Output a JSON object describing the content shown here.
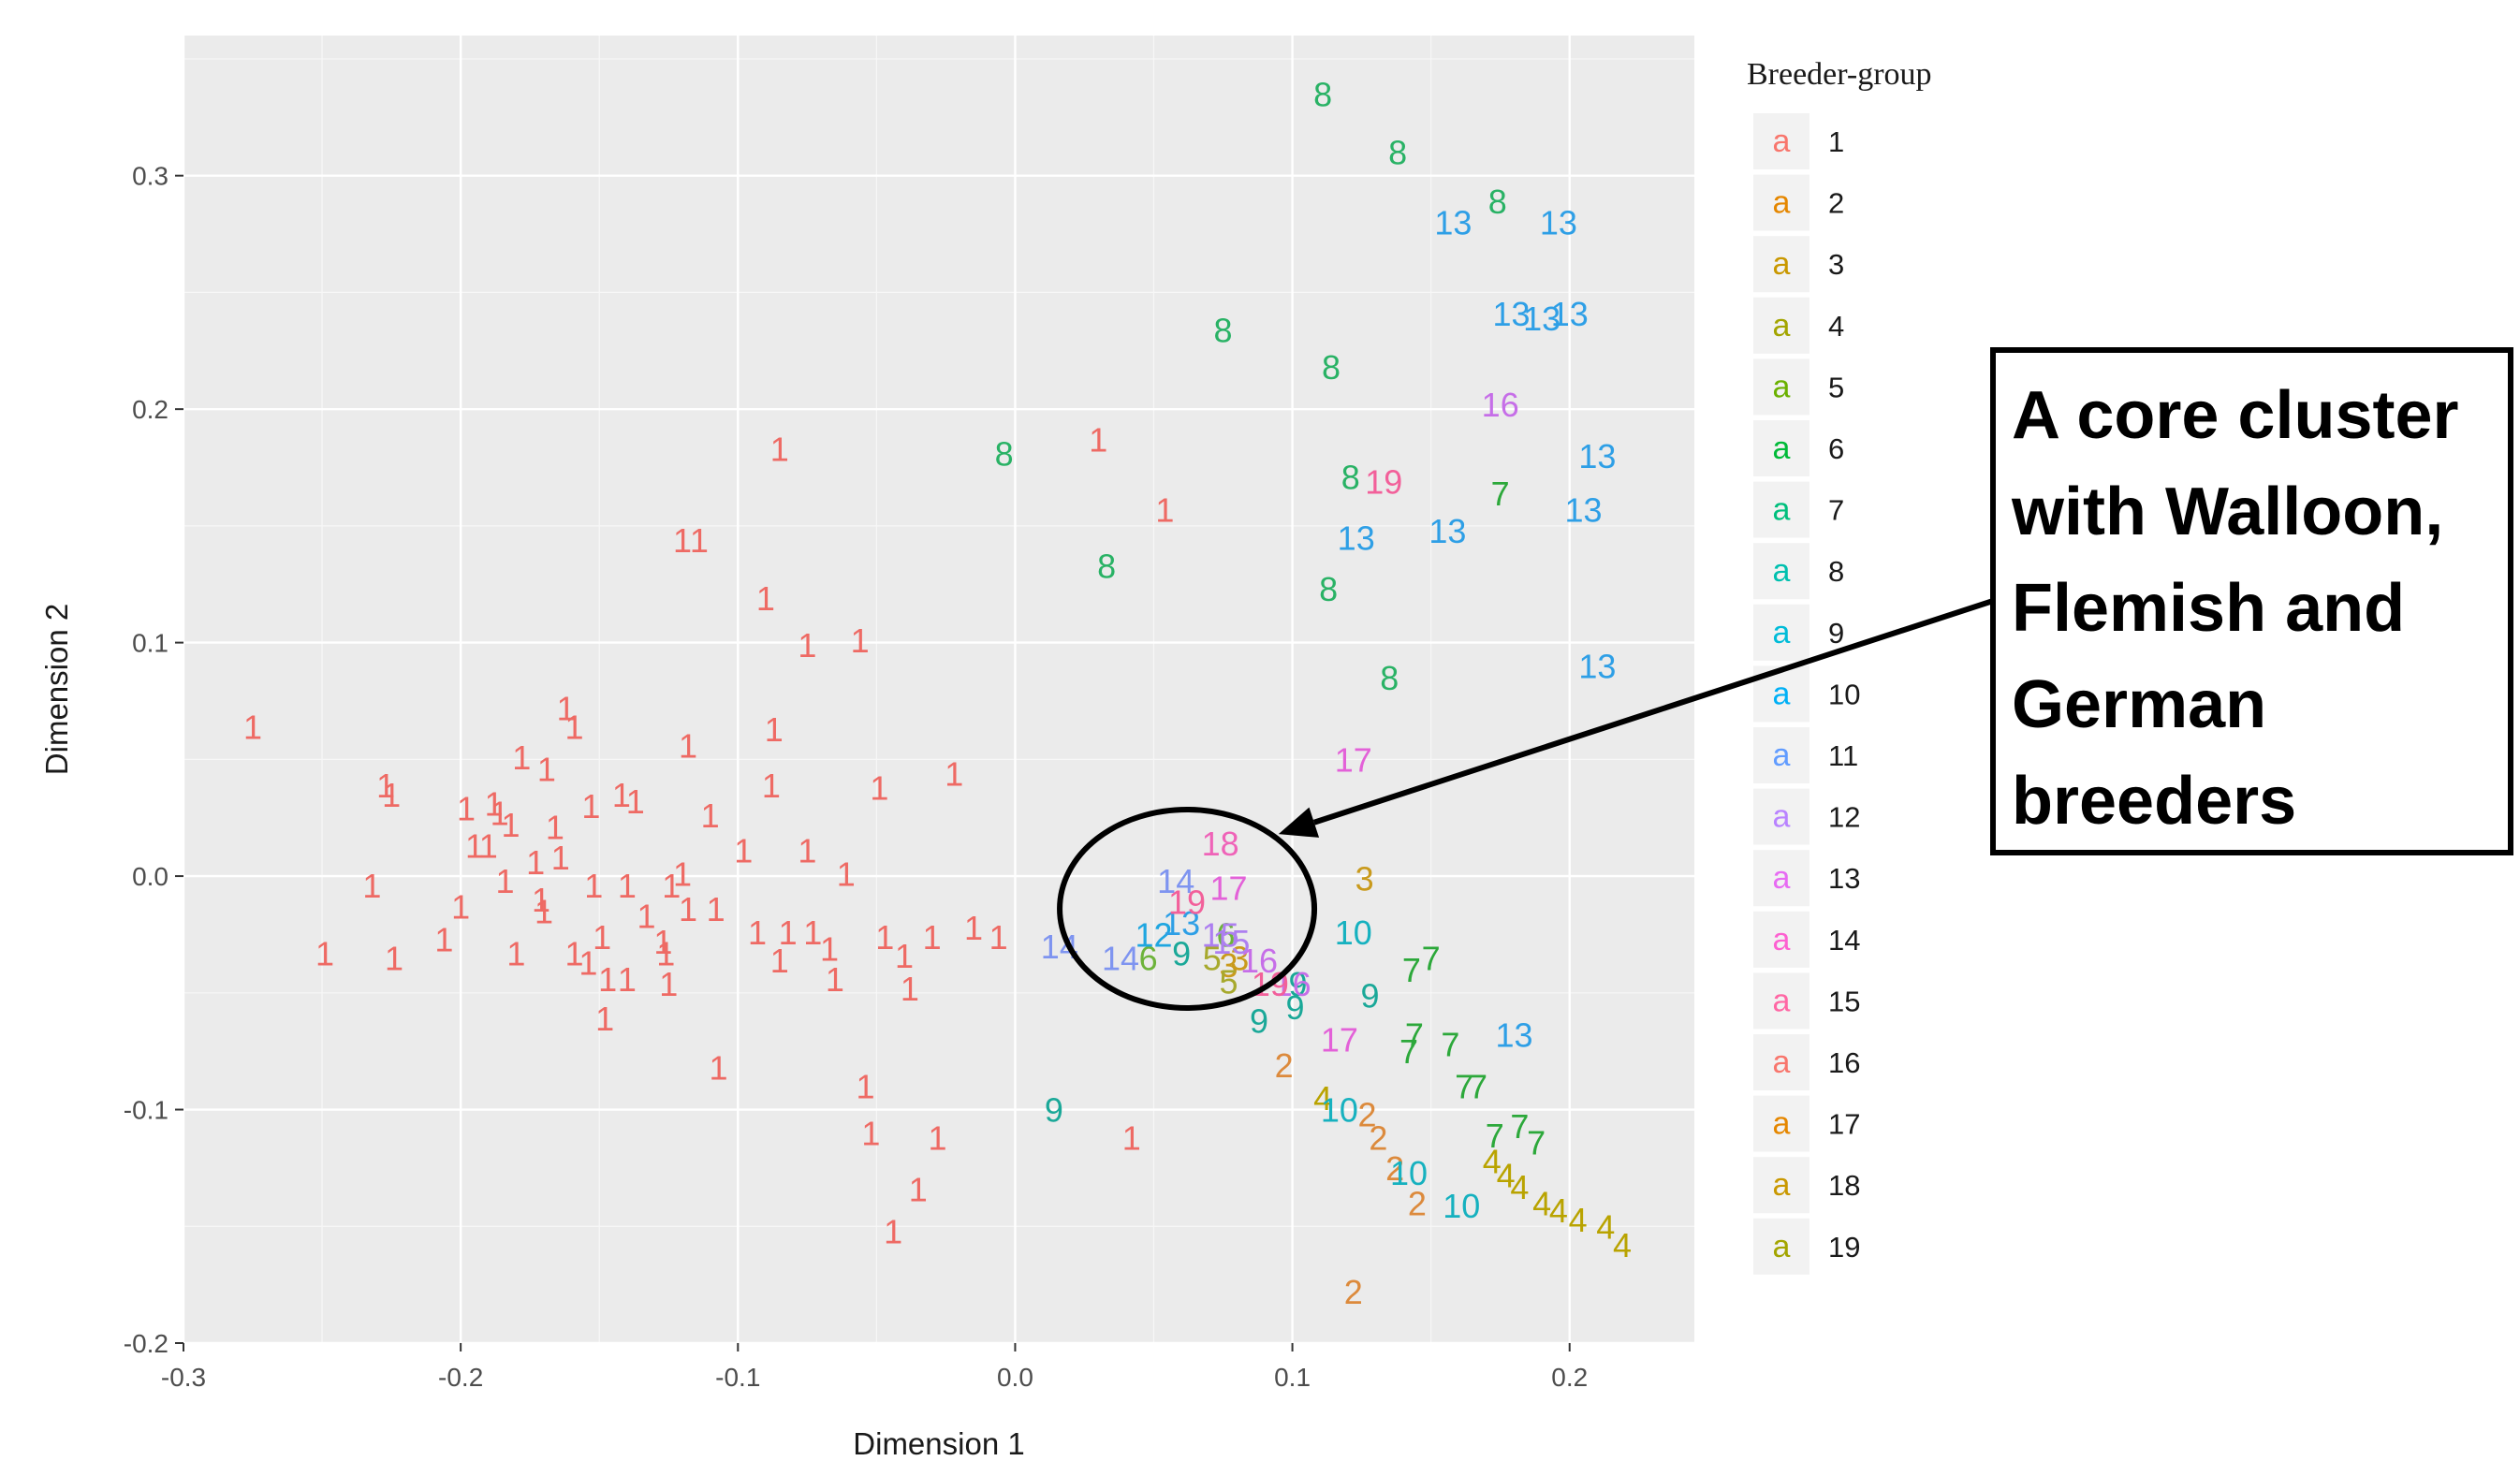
{
  "chart_data": {
    "type": "scatter",
    "marker": "text",
    "title": "",
    "xlabel": "Dimension 1",
    "ylabel": "Dimension 2",
    "xlim": [
      -0.3,
      0.245
    ],
    "ylim": [
      -0.2,
      0.36
    ],
    "xticks": [
      -0.3,
      -0.2,
      -0.1,
      0.0,
      0.1,
      0.2
    ],
    "xtick_labels": [
      "-0.3",
      "-0.2",
      "-0.1",
      "0.0",
      "0.1",
      "0.2"
    ],
    "yticks": [
      -0.2,
      -0.1,
      0.0,
      0.1,
      0.2,
      0.3
    ],
    "ytick_labels": [
      "-0.2",
      "-0.1",
      "0.0",
      "0.1",
      "0.2",
      "0.3"
    ],
    "grid": true,
    "background": "#ebebeb",
    "legend": {
      "title": "Breeder-group",
      "placement": "right",
      "key_glyph": "a",
      "entries": [
        {
          "label": "1",
          "color": "#f8766d"
        },
        {
          "label": "2",
          "color": "#e58700"
        },
        {
          "label": "3",
          "color": "#c99800"
        },
        {
          "label": "4",
          "color": "#a3a500"
        },
        {
          "label": "5",
          "color": "#6bb100"
        },
        {
          "label": "6",
          "color": "#00ba38"
        },
        {
          "label": "7",
          "color": "#00bf7d"
        },
        {
          "label": "8",
          "color": "#00c0af"
        },
        {
          "label": "9",
          "color": "#00bcd8"
        },
        {
          "label": "10",
          "color": "#00b0f6"
        },
        {
          "label": "11",
          "color": "#619cff"
        },
        {
          "label": "12",
          "color": "#b983ff"
        },
        {
          "label": "13",
          "color": "#e76bf3"
        },
        {
          "label": "14",
          "color": "#fd61d1"
        },
        {
          "label": "15",
          "color": "#ff67a4"
        },
        {
          "label": "16",
          "color": "#f8766d"
        },
        {
          "label": "17",
          "color": "#e58700"
        },
        {
          "label": "18",
          "color": "#c99800"
        },
        {
          "label": "19",
          "color": "#a3a500"
        }
      ]
    },
    "point_colors": {
      "1": "#ee6a64",
      "2": "#dc8a3c",
      "3": "#c99a1c",
      "4": "#b9a300",
      "5": "#a7a92d",
      "6": "#6db33a",
      "7": "#2ca83a",
      "8": "#29b265",
      "9": "#1aa898",
      "10": "#16b1bf",
      "12": "#1fa6e0",
      "13": "#2e9fe6",
      "14": "#7e94f0",
      "15": "#ad7ff0",
      "16": "#c66ee8",
      "17": "#e361d8",
      "18": "#ef63b8",
      "19": "#f2609a"
    },
    "points": [
      {
        "x": -0.275,
        "y": 0.064,
        "g": "1"
      },
      {
        "x": -0.249,
        "y": -0.033,
        "g": "1"
      },
      {
        "x": -0.232,
        "y": -0.004,
        "g": "1"
      },
      {
        "x": -0.227,
        "y": 0.039,
        "g": "1"
      },
      {
        "x": -0.225,
        "y": 0.035,
        "g": "1"
      },
      {
        "x": -0.224,
        "y": -0.035,
        "g": "1"
      },
      {
        "x": -0.206,
        "y": -0.027,
        "g": "1"
      },
      {
        "x": -0.2,
        "y": -0.013,
        "g": "1"
      },
      {
        "x": -0.198,
        "y": 0.029,
        "g": "1"
      },
      {
        "x": -0.195,
        "y": 0.013,
        "g": "1"
      },
      {
        "x": -0.19,
        "y": 0.013,
        "g": "1"
      },
      {
        "x": -0.188,
        "y": 0.031,
        "g": "1"
      },
      {
        "x": -0.186,
        "y": 0.027,
        "g": "1"
      },
      {
        "x": -0.184,
        "y": -0.002,
        "g": "1"
      },
      {
        "x": -0.182,
        "y": 0.022,
        "g": "1"
      },
      {
        "x": -0.18,
        "y": -0.033,
        "g": "1"
      },
      {
        "x": -0.178,
        "y": 0.051,
        "g": "1"
      },
      {
        "x": -0.173,
        "y": 0.006,
        "g": "1"
      },
      {
        "x": -0.171,
        "y": -0.01,
        "g": "1"
      },
      {
        "x": -0.17,
        "y": -0.015,
        "g": "1"
      },
      {
        "x": -0.169,
        "y": 0.046,
        "g": "1"
      },
      {
        "x": -0.166,
        "y": 0.021,
        "g": "1"
      },
      {
        "x": -0.164,
        "y": 0.008,
        "g": "1"
      },
      {
        "x": -0.162,
        "y": 0.072,
        "g": "1"
      },
      {
        "x": -0.159,
        "y": 0.064,
        "g": "1"
      },
      {
        "x": -0.159,
        "y": -0.033,
        "g": "1"
      },
      {
        "x": -0.154,
        "y": -0.037,
        "g": "1"
      },
      {
        "x": -0.153,
        "y": 0.03,
        "g": "1"
      },
      {
        "x": -0.152,
        "y": -0.004,
        "g": "1"
      },
      {
        "x": -0.149,
        "y": -0.026,
        "g": "1"
      },
      {
        "x": -0.148,
        "y": -0.061,
        "g": "1"
      },
      {
        "x": -0.147,
        "y": -0.044,
        "g": "1"
      },
      {
        "x": -0.142,
        "y": 0.035,
        "g": "1"
      },
      {
        "x": -0.14,
        "y": -0.004,
        "g": "1"
      },
      {
        "x": -0.137,
        "y": 0.032,
        "g": "1"
      },
      {
        "x": -0.14,
        "y": -0.044,
        "g": "1"
      },
      {
        "x": -0.133,
        "y": -0.017,
        "g": "1"
      },
      {
        "x": -0.127,
        "y": -0.028,
        "g": "1"
      },
      {
        "x": -0.126,
        "y": -0.033,
        "g": "1"
      },
      {
        "x": -0.125,
        "y": -0.046,
        "g": "1"
      },
      {
        "x": -0.124,
        "y": -0.004,
        "g": "1"
      },
      {
        "x": -0.12,
        "y": 0.144,
        "g": "1"
      },
      {
        "x": -0.12,
        "y": 0.001,
        "g": "1"
      },
      {
        "x": -0.118,
        "y": 0.056,
        "g": "1"
      },
      {
        "x": -0.118,
        "y": -0.014,
        "g": "1"
      },
      {
        "x": -0.114,
        "y": 0.144,
        "g": "1"
      },
      {
        "x": -0.11,
        "y": 0.026,
        "g": "1"
      },
      {
        "x": -0.108,
        "y": -0.014,
        "g": "1"
      },
      {
        "x": -0.107,
        "y": -0.082,
        "g": "1"
      },
      {
        "x": -0.098,
        "y": 0.011,
        "g": "1"
      },
      {
        "x": -0.093,
        "y": -0.024,
        "g": "1"
      },
      {
        "x": -0.09,
        "y": 0.119,
        "g": "1"
      },
      {
        "x": -0.088,
        "y": 0.039,
        "g": "1"
      },
      {
        "x": -0.087,
        "y": 0.063,
        "g": "1"
      },
      {
        "x": -0.085,
        "y": 0.183,
        "g": "1"
      },
      {
        "x": -0.085,
        "y": -0.036,
        "g": "1"
      },
      {
        "x": -0.082,
        "y": -0.024,
        "g": "1"
      },
      {
        "x": -0.075,
        "y": 0.099,
        "g": "1"
      },
      {
        "x": -0.075,
        "y": 0.011,
        "g": "1"
      },
      {
        "x": -0.073,
        "y": -0.024,
        "g": "1"
      },
      {
        "x": -0.067,
        "y": -0.031,
        "g": "1"
      },
      {
        "x": -0.065,
        "y": -0.044,
        "g": "1"
      },
      {
        "x": -0.061,
        "y": 0.001,
        "g": "1"
      },
      {
        "x": -0.056,
        "y": 0.101,
        "g": "1"
      },
      {
        "x": -0.054,
        "y": -0.09,
        "g": "1"
      },
      {
        "x": -0.052,
        "y": -0.11,
        "g": "1"
      },
      {
        "x": -0.049,
        "y": 0.038,
        "g": "1"
      },
      {
        "x": -0.047,
        "y": -0.026,
        "g": "1"
      },
      {
        "x": -0.044,
        "y": -0.152,
        "g": "1"
      },
      {
        "x": -0.04,
        "y": -0.034,
        "g": "1"
      },
      {
        "x": -0.038,
        "y": -0.048,
        "g": "1"
      },
      {
        "x": -0.035,
        "y": -0.134,
        "g": "1"
      },
      {
        "x": -0.03,
        "y": -0.026,
        "g": "1"
      },
      {
        "x": -0.028,
        "y": -0.112,
        "g": "1"
      },
      {
        "x": -0.022,
        "y": 0.044,
        "g": "1"
      },
      {
        "x": -0.015,
        "y": -0.022,
        "g": "1"
      },
      {
        "x": -0.006,
        "y": -0.026,
        "g": "1"
      },
      {
        "x": 0.03,
        "y": 0.187,
        "g": "1"
      },
      {
        "x": 0.042,
        "y": -0.112,
        "g": "1"
      },
      {
        "x": 0.054,
        "y": 0.157,
        "g": "1"
      },
      {
        "x": 0.097,
        "y": -0.081,
        "g": "2"
      },
      {
        "x": 0.122,
        "y": -0.178,
        "g": "2"
      },
      {
        "x": 0.127,
        "y": -0.102,
        "g": "2"
      },
      {
        "x": 0.131,
        "y": -0.112,
        "g": "2"
      },
      {
        "x": 0.137,
        "y": -0.125,
        "g": "2"
      },
      {
        "x": 0.145,
        "y": -0.14,
        "g": "2"
      },
      {
        "x": 0.126,
        "y": -0.001,
        "g": "3"
      },
      {
        "x": 0.077,
        "y": -0.038,
        "g": "3"
      },
      {
        "x": 0.081,
        "y": -0.035,
        "g": "3"
      },
      {
        "x": 0.111,
        "y": -0.095,
        "g": "4"
      },
      {
        "x": 0.172,
        "y": -0.122,
        "g": "4"
      },
      {
        "x": 0.177,
        "y": -0.128,
        "g": "4"
      },
      {
        "x": 0.182,
        "y": -0.133,
        "g": "4"
      },
      {
        "x": 0.19,
        "y": -0.14,
        "g": "4"
      },
      {
        "x": 0.196,
        "y": -0.143,
        "g": "4"
      },
      {
        "x": 0.203,
        "y": -0.147,
        "g": "4"
      },
      {
        "x": 0.213,
        "y": -0.15,
        "g": "4"
      },
      {
        "x": 0.219,
        "y": -0.158,
        "g": "4"
      },
      {
        "x": 0.077,
        "y": -0.045,
        "g": "5"
      },
      {
        "x": 0.071,
        "y": -0.035,
        "g": "5"
      },
      {
        "x": 0.048,
        "y": -0.035,
        "g": "6"
      },
      {
        "x": 0.076,
        "y": -0.025,
        "g": "6"
      },
      {
        "x": 0.144,
        "y": -0.068,
        "g": "7"
      },
      {
        "x": 0.157,
        "y": -0.072,
        "g": "7"
      },
      {
        "x": 0.175,
        "y": 0.164,
        "g": "7"
      },
      {
        "x": 0.143,
        "y": -0.04,
        "g": "7"
      },
      {
        "x": 0.15,
        "y": -0.035,
        "g": "7"
      },
      {
        "x": 0.162,
        "y": -0.09,
        "g": "7"
      },
      {
        "x": 0.167,
        "y": -0.09,
        "g": "7"
      },
      {
        "x": 0.173,
        "y": -0.111,
        "g": "7"
      },
      {
        "x": 0.182,
        "y": -0.107,
        "g": "7"
      },
      {
        "x": 0.188,
        "y": -0.114,
        "g": "7"
      },
      {
        "x": 0.142,
        "y": -0.075,
        "g": "7"
      },
      {
        "x": 0.111,
        "y": 0.335,
        "g": "8"
      },
      {
        "x": 0.138,
        "y": 0.31,
        "g": "8"
      },
      {
        "x": 0.174,
        "y": 0.289,
        "g": "8"
      },
      {
        "x": 0.075,
        "y": 0.234,
        "g": "8"
      },
      {
        "x": 0.114,
        "y": 0.218,
        "g": "8"
      },
      {
        "x": -0.004,
        "y": 0.181,
        "g": "8"
      },
      {
        "x": 0.121,
        "y": 0.171,
        "g": "8"
      },
      {
        "x": 0.033,
        "y": 0.133,
        "g": "8"
      },
      {
        "x": 0.113,
        "y": 0.123,
        "g": "8"
      },
      {
        "x": 0.135,
        "y": 0.085,
        "g": "8"
      },
      {
        "x": 0.014,
        "y": -0.1,
        "g": "9"
      },
      {
        "x": 0.088,
        "y": -0.062,
        "g": "9"
      },
      {
        "x": 0.101,
        "y": -0.056,
        "g": "9"
      },
      {
        "x": 0.102,
        "y": -0.046,
        "g": "9"
      },
      {
        "x": 0.128,
        "y": -0.051,
        "g": "9"
      },
      {
        "x": 0.06,
        "y": -0.033,
        "g": "9"
      },
      {
        "x": 0.122,
        "y": -0.024,
        "g": "10"
      },
      {
        "x": 0.117,
        "y": -0.1,
        "g": "10"
      },
      {
        "x": 0.142,
        "y": -0.127,
        "g": "10"
      },
      {
        "x": 0.161,
        "y": -0.141,
        "g": "10"
      },
      {
        "x": 0.05,
        "y": -0.025,
        "g": "12"
      },
      {
        "x": 0.156,
        "y": 0.148,
        "g": "13"
      },
      {
        "x": 0.123,
        "y": 0.145,
        "g": "13"
      },
      {
        "x": 0.158,
        "y": 0.28,
        "g": "13"
      },
      {
        "x": 0.196,
        "y": 0.28,
        "g": "13"
      },
      {
        "x": 0.179,
        "y": 0.241,
        "g": "13"
      },
      {
        "x": 0.19,
        "y": 0.239,
        "g": "13"
      },
      {
        "x": 0.2,
        "y": 0.241,
        "g": "13"
      },
      {
        "x": 0.21,
        "y": 0.18,
        "g": "13"
      },
      {
        "x": 0.205,
        "y": 0.157,
        "g": "13"
      },
      {
        "x": 0.21,
        "y": 0.09,
        "g": "13"
      },
      {
        "x": 0.18,
        "y": -0.068,
        "g": "13"
      },
      {
        "x": 0.06,
        "y": -0.02,
        "g": "13"
      },
      {
        "x": 0.058,
        "y": -0.002,
        "g": "14"
      },
      {
        "x": 0.038,
        "y": -0.035,
        "g": "14"
      },
      {
        "x": 0.016,
        "y": -0.03,
        "g": "14"
      },
      {
        "x": 0.074,
        "y": -0.025,
        "g": "15"
      },
      {
        "x": 0.078,
        "y": -0.028,
        "g": "15"
      },
      {
        "x": 0.175,
        "y": 0.202,
        "g": "16"
      },
      {
        "x": 0.088,
        "y": -0.036,
        "g": "16"
      },
      {
        "x": 0.1,
        "y": -0.046,
        "g": "16"
      },
      {
        "x": 0.122,
        "y": 0.05,
        "g": "17"
      },
      {
        "x": 0.077,
        "y": -0.005,
        "g": "17"
      },
      {
        "x": 0.117,
        "y": -0.07,
        "g": "17"
      },
      {
        "x": 0.074,
        "y": 0.014,
        "g": "18"
      },
      {
        "x": 0.133,
        "y": 0.169,
        "g": "19"
      },
      {
        "x": 0.062,
        "y": -0.011,
        "g": "19"
      },
      {
        "x": 0.092,
        "y": -0.046,
        "g": "19"
      }
    ],
    "annotation": {
      "lines": [
        "A core cluster",
        "with Walloon,",
        "Flemish and",
        "German",
        "breeders"
      ],
      "ellipse_center": [
        0.062,
        -0.014
      ],
      "arrow_target": [
        0.095,
        0.018
      ]
    }
  }
}
